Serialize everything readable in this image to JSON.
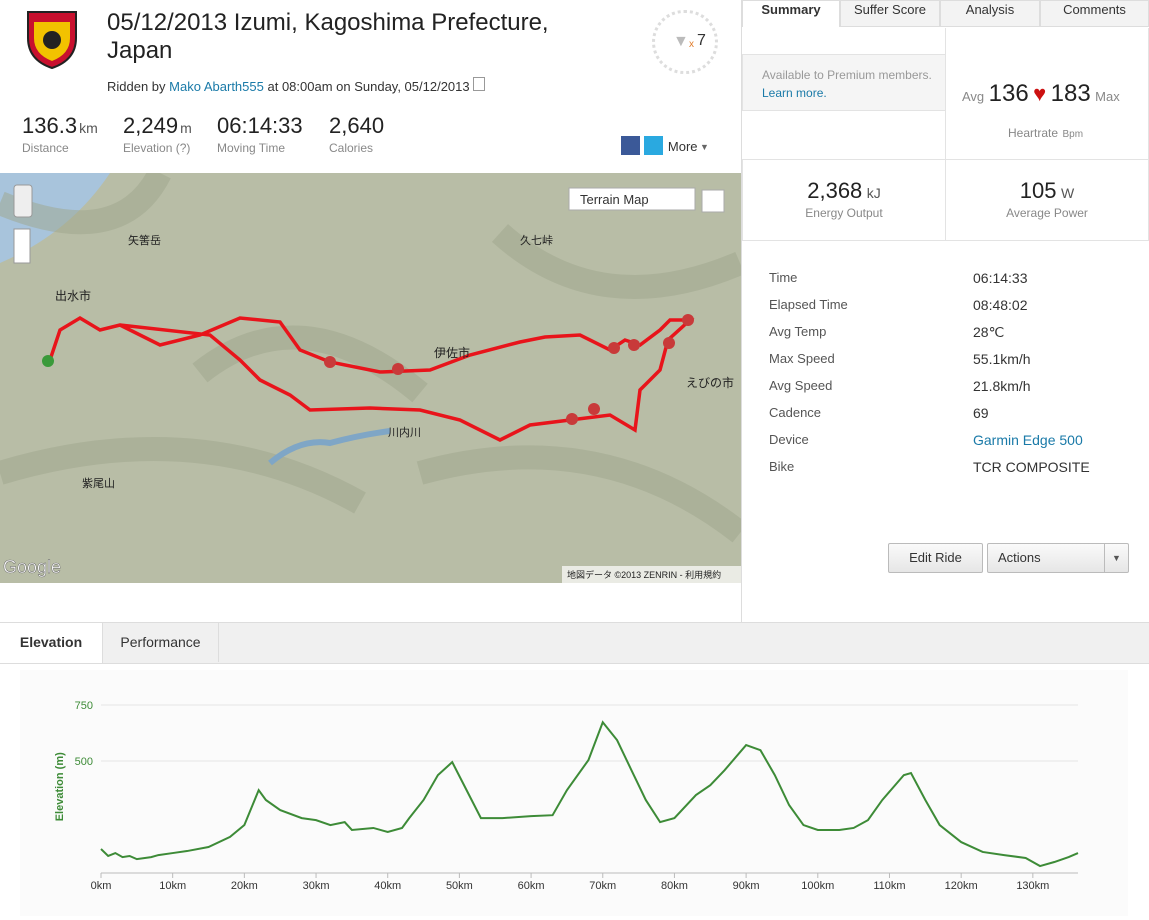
{
  "header": {
    "title": "05/12/2013 Izumi, Kagoshima Prefecture, Japan",
    "ridden_by": "Ridden by",
    "athlete": "Mako Abarth555",
    "when": "at 08:00am on Sunday, 05/12/2013",
    "trophy_x": "x",
    "trophy_count": "7",
    "share_more": "More"
  },
  "stats": [
    {
      "value": "136.3",
      "unit": "km",
      "label": "Distance"
    },
    {
      "value": "2,249",
      "unit": "m",
      "label": "Elevation (?)"
    },
    {
      "value": "06:14:33",
      "label": "Moving Time"
    },
    {
      "value": "2,640",
      "label": "Calories"
    }
  ],
  "map": {
    "type_button": "Terrain Map",
    "labels": [
      "出水市",
      "伊佐市",
      "えびの市",
      "川内川",
      "矢筈岳",
      "紫尾山",
      "久七峠"
    ],
    "attribution": "地図データ ©2013 ZENRIN - 利用規約",
    "logo": "Google"
  },
  "tabs": [
    "Summary",
    "Suffer Score",
    "Analysis",
    "Comments"
  ],
  "premium": {
    "text": "Available to Premium members.",
    "link": "Learn more."
  },
  "heartrate": {
    "avg_label": "Avg",
    "avg": "136",
    "max": "183",
    "max_label": "Max",
    "label": "Heartrate",
    "unit": "Bpm"
  },
  "energy": {
    "value": "2,368",
    "unit": "kJ",
    "label": "Energy Output"
  },
  "power": {
    "value": "105",
    "unit": "W",
    "label": "Average Power"
  },
  "details": [
    [
      "Time",
      "06:14:33"
    ],
    [
      "Elapsed Time",
      "08:48:02"
    ],
    [
      "Avg Temp",
      "28℃"
    ],
    [
      "Max Speed",
      "55.1km/h"
    ],
    [
      "Avg Speed",
      "21.8km/h"
    ],
    [
      "Cadence",
      "69"
    ],
    [
      "Device",
      "Garmin Edge 500"
    ],
    [
      "Bike",
      "TCR COMPOSITE"
    ]
  ],
  "buttons": {
    "edit": "Edit Ride",
    "actions": "Actions"
  },
  "bottom_tabs": [
    "Elevation",
    "Performance"
  ],
  "chart_data": {
    "type": "line",
    "y_label": "Elevation (m)",
    "color": "#3d8b37",
    "x": [
      0,
      1,
      2,
      3,
      4,
      5,
      7,
      8,
      10,
      12,
      15,
      18,
      20,
      22,
      23,
      25,
      28,
      30,
      32,
      34,
      35,
      38,
      40,
      42,
      43,
      45,
      47,
      49,
      51,
      53,
      56,
      60,
      63,
      65,
      68,
      70,
      72,
      74,
      76,
      78,
      80,
      83,
      85,
      87,
      90,
      92,
      94,
      96,
      98,
      100,
      103,
      105,
      107,
      109,
      112,
      113,
      115,
      117,
      120,
      123,
      126,
      129,
      131,
      133,
      135,
      136.3
    ],
    "values": [
      107,
      76,
      89,
      71,
      76,
      62,
      71,
      80,
      89,
      98,
      116,
      161,
      214,
      370,
      326,
      281,
      245,
      236,
      214,
      227,
      192,
      201,
      183,
      201,
      245,
      326,
      437,
      495,
      370,
      245,
      245,
      254,
      258,
      370,
      504,
      673,
      593,
      459,
      326,
      227,
      245,
      348,
      392,
      459,
      571,
      548,
      437,
      303,
      214,
      192,
      192,
      201,
      236,
      326,
      437,
      446,
      326,
      214,
      138,
      94,
      80,
      67,
      31,
      49,
      71,
      89
    ],
    "xlim": [
      0,
      136.3
    ],
    "ylim": [
      0,
      770
    ],
    "xticks": [
      {
        "value": 0,
        "label": "0km"
      },
      {
        "value": 10,
        "label": "10km"
      },
      {
        "value": 20,
        "label": "20km"
      },
      {
        "value": 30,
        "label": "30km"
      },
      {
        "value": 40,
        "label": "40km"
      },
      {
        "value": 50,
        "label": "50km"
      },
      {
        "value": 60,
        "label": "60km"
      },
      {
        "value": 70,
        "label": "70km"
      },
      {
        "value": 80,
        "label": "80km"
      },
      {
        "value": 90,
        "label": "90km"
      },
      {
        "value": 100,
        "label": "100km"
      },
      {
        "value": 110,
        "label": "110km"
      },
      {
        "value": 120,
        "label": "120km"
      },
      {
        "value": 130,
        "label": "130km"
      }
    ],
    "yticks": [
      500,
      750
    ],
    "grid": true
  }
}
